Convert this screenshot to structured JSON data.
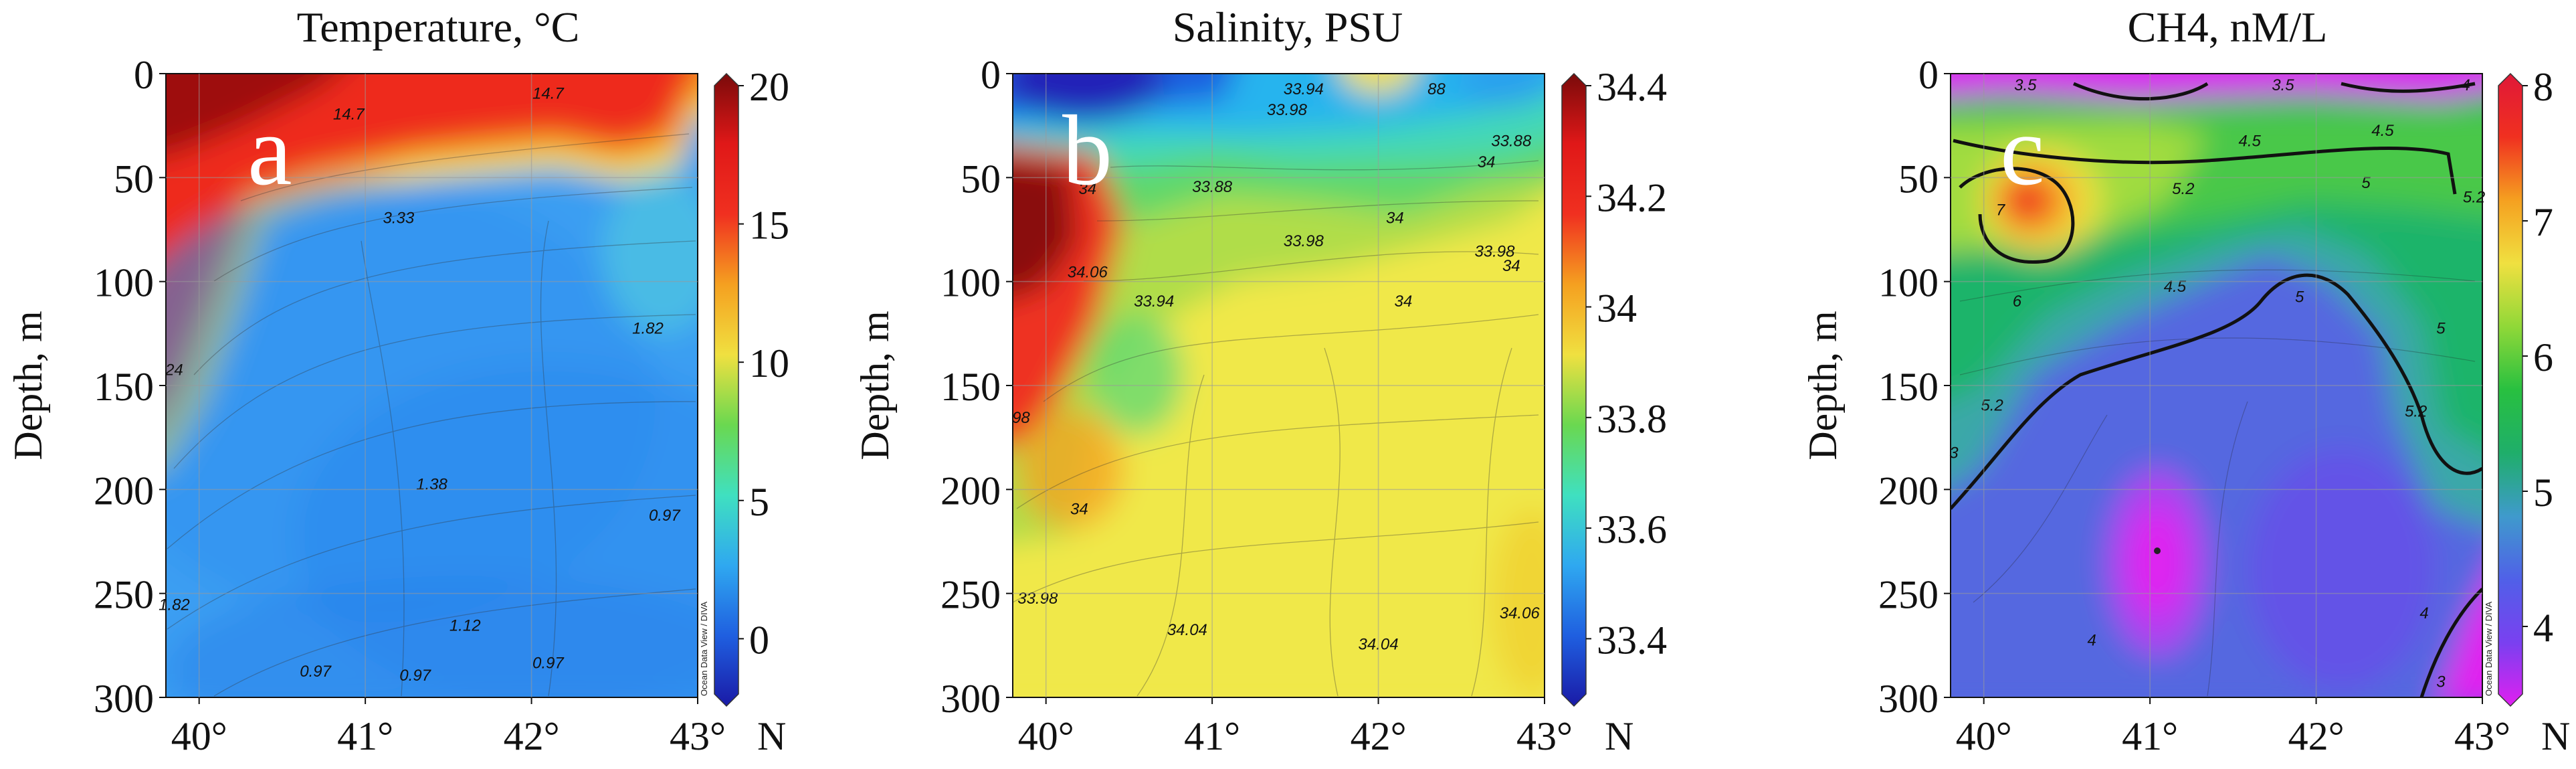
{
  "chart_data": [
    {
      "type": "heatmap",
      "panel_letter": "a",
      "title": "Temperature, °C",
      "xlabel": "",
      "ylabel": "Depth, m",
      "x_unit_label": "N",
      "xlim": [
        39.8,
        43.0
      ],
      "ylim": [
        300,
        0
      ],
      "x_ticks": [
        40,
        41,
        42,
        43
      ],
      "x_tick_labels": [
        "40°",
        "41°",
        "42°",
        "43°"
      ],
      "y_ticks": [
        0,
        50,
        100,
        150,
        200,
        250,
        300
      ],
      "colorbar": {
        "range": [
          -2,
          20
        ],
        "ticks": [
          0,
          5,
          10,
          15,
          20
        ],
        "tick_labels": [
          "0",
          "5",
          "10",
          "15",
          "20"
        ],
        "colors": [
          "#1a1aa6",
          "#1f5fe0",
          "#2fa8f0",
          "#3fe0c0",
          "#6ad850",
          "#f0e040",
          "#f5a020",
          "#f03020",
          "#e01818",
          "#7a0a0a"
        ]
      },
      "credit": "Ocean Data View / DIVA",
      "contour_labels": [
        {
          "text": "14.7",
          "x": 40.9,
          "y": 22
        },
        {
          "text": "14.7",
          "x": 42.1,
          "y": 12
        },
        {
          "text": "3.33",
          "x": 41.2,
          "y": 72
        },
        {
          "text": "1.82",
          "x": 42.7,
          "y": 125
        },
        {
          "text": "1.38",
          "x": 41.4,
          "y": 200
        },
        {
          "text": "1.12",
          "x": 41.6,
          "y": 268
        },
        {
          "text": "0.97",
          "x": 42.8,
          "y": 215
        },
        {
          "text": "0.97",
          "x": 40.7,
          "y": 290
        },
        {
          "text": "0.97",
          "x": 41.3,
          "y": 292
        },
        {
          "text": "0.97",
          "x": 42.1,
          "y": 286
        },
        {
          "text": "1.82",
          "x": 39.85,
          "y": 258
        },
        {
          "text": "24",
          "x": 39.85,
          "y": 145
        }
      ]
    },
    {
      "type": "heatmap",
      "panel_letter": "b",
      "title": "Salinity, PSU",
      "xlabel": "",
      "ylabel": "Depth, m",
      "x_unit_label": "N",
      "xlim": [
        39.8,
        43.0
      ],
      "ylim": [
        300,
        0
      ],
      "x_ticks": [
        40,
        41,
        42,
        43
      ],
      "x_tick_labels": [
        "40°",
        "41°",
        "42°",
        "43°"
      ],
      "y_ticks": [
        0,
        50,
        100,
        150,
        200,
        250,
        300
      ],
      "colorbar": {
        "range": [
          33.3,
          34.4
        ],
        "ticks": [
          33.4,
          33.6,
          33.8,
          34,
          34.2,
          34.4
        ],
        "tick_labels": [
          "33.4",
          "33.6",
          "33.8",
          "34",
          "34.2",
          "34.4"
        ],
        "colors": [
          "#1a1aa6",
          "#1f5fe0",
          "#2fa8f0",
          "#3fe0c0",
          "#6ad850",
          "#f0e040",
          "#f5a020",
          "#f03020",
          "#e01818",
          "#7a0a0a"
        ]
      },
      "contour_labels": [
        {
          "text": "33.88",
          "x": 41.0,
          "y": 57
        },
        {
          "text": "33.98",
          "x": 41.45,
          "y": 20
        },
        {
          "text": "33.94",
          "x": 41.55,
          "y": 10
        },
        {
          "text": "88",
          "x": 42.35,
          "y": 10
        },
        {
          "text": "33.88",
          "x": 42.8,
          "y": 35
        },
        {
          "text": "34",
          "x": 42.65,
          "y": 45
        },
        {
          "text": "34",
          "x": 40.25,
          "y": 58
        },
        {
          "text": "34",
          "x": 42.1,
          "y": 72
        },
        {
          "text": "33.98",
          "x": 41.55,
          "y": 83
        },
        {
          "text": "33.98",
          "x": 42.7,
          "y": 88
        },
        {
          "text": "34",
          "x": 42.8,
          "y": 95
        },
        {
          "text": "34.06",
          "x": 40.25,
          "y": 98
        },
        {
          "text": "33.94",
          "x": 40.65,
          "y": 112
        },
        {
          "text": "34",
          "x": 42.15,
          "y": 112
        },
        {
          "text": "34",
          "x": 40.2,
          "y": 212
        },
        {
          "text": "33.98",
          "x": 39.95,
          "y": 255
        },
        {
          "text": "34.04",
          "x": 40.85,
          "y": 270
        },
        {
          "text": "34.04",
          "x": 42.0,
          "y": 277
        },
        {
          "text": "34.06",
          "x": 42.85,
          "y": 262
        },
        {
          "text": "98",
          "x": 39.85,
          "y": 168
        }
      ]
    },
    {
      "type": "heatmap",
      "panel_letter": "c",
      "title": "CH4, nM/L",
      "xlabel": "",
      "ylabel": "Depth, m",
      "x_unit_label": "N",
      "xlim": [
        39.8,
        43.0
      ],
      "ylim": [
        300,
        0
      ],
      "x_ticks": [
        40,
        41,
        42,
        43
      ],
      "x_tick_labels": [
        "40°",
        "41°",
        "42°",
        "43°"
      ],
      "y_ticks": [
        0,
        50,
        100,
        150,
        200,
        250,
        300
      ],
      "colorbar": {
        "range": [
          3.5,
          8
        ],
        "ticks": [
          4,
          5,
          6,
          7,
          8
        ],
        "tick_labels": [
          "4",
          "5",
          "6",
          "7",
          "8"
        ],
        "colors": [
          "#e020f0",
          "#7a40f0",
          "#5060e8",
          "#3f9acc",
          "#1fae6a",
          "#28c040",
          "#90d838",
          "#f0e040",
          "#f5a020",
          "#f03020",
          "#e01838"
        ]
      },
      "credit": "Ocean Data View / DIVA",
      "contour_labels": [
        {
          "text": "3.5",
          "x": 40.25,
          "y": 8
        },
        {
          "text": "3.5",
          "x": 41.8,
          "y": 8
        },
        {
          "text": "4",
          "x": 42.9,
          "y": 8
        },
        {
          "text": "4.5",
          "x": 41.6,
          "y": 35
        },
        {
          "text": "4.5",
          "x": 42.4,
          "y": 30
        },
        {
          "text": "5.2",
          "x": 41.2,
          "y": 58
        },
        {
          "text": "5",
          "x": 42.3,
          "y": 55
        },
        {
          "text": "5.2",
          "x": 42.95,
          "y": 62
        },
        {
          "text": "7",
          "x": 40.1,
          "y": 68
        },
        {
          "text": "6",
          "x": 40.2,
          "y": 112
        },
        {
          "text": "5",
          "x": 41.9,
          "y": 110
        },
        {
          "text": "4.5",
          "x": 41.15,
          "y": 105
        },
        {
          "text": "5",
          "x": 42.75,
          "y": 125
        },
        {
          "text": "5.2",
          "x": 40.05,
          "y": 162
        },
        {
          "text": "5.2",
          "x": 42.6,
          "y": 165
        },
        {
          "text": "4",
          "x": 40.65,
          "y": 275
        },
        {
          "text": "4",
          "x": 42.65,
          "y": 262
        },
        {
          "text": "3",
          "x": 39.82,
          "y": 185
        },
        {
          "text": "3",
          "x": 42.75,
          "y": 295
        }
      ]
    }
  ]
}
